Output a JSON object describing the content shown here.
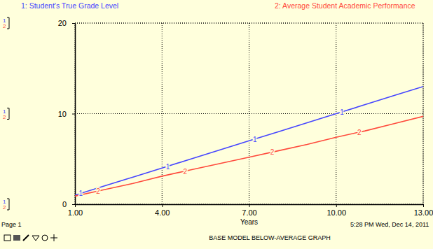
{
  "chart_data": {
    "type": "line",
    "title": "BASE MODEL BELOW-AVERAGE GRAPH",
    "page": "Page 1",
    "timestamp": "5:28 PM  Wed, Dec 14, 2011",
    "x_label": "Years",
    "x": [
      1,
      2,
      3,
      4,
      5,
      6,
      7,
      8,
      9,
      10,
      11,
      12,
      13
    ],
    "series": [
      {
        "name": "1: Student's True Grade Level",
        "number": "1",
        "color": "#4646ff",
        "values": [
          1,
          2,
          3,
          4,
          5,
          6,
          7,
          8,
          9,
          10,
          11,
          12,
          13
        ]
      },
      {
        "name": "2: Average Student Academic Performance",
        "number": "2",
        "color": "#ff4a3c",
        "values": [
          0.9,
          1.6,
          2.3,
          3.1,
          3.8,
          4.5,
          5.2,
          5.9,
          6.6,
          7.4,
          8.1,
          8.9,
          9.7
        ]
      }
    ],
    "xlim": [
      1,
      13
    ],
    "xticks": [
      {
        "value": 1,
        "label": "1.00"
      },
      {
        "value": 4,
        "label": "4.00"
      },
      {
        "value": 7,
        "label": "7.00"
      },
      {
        "value": 10,
        "label": "10.00"
      },
      {
        "value": 13,
        "label": "13.00"
      }
    ],
    "ylim": [
      0,
      20
    ],
    "yticks": [
      0,
      10,
      20
    ],
    "grid": true
  }
}
